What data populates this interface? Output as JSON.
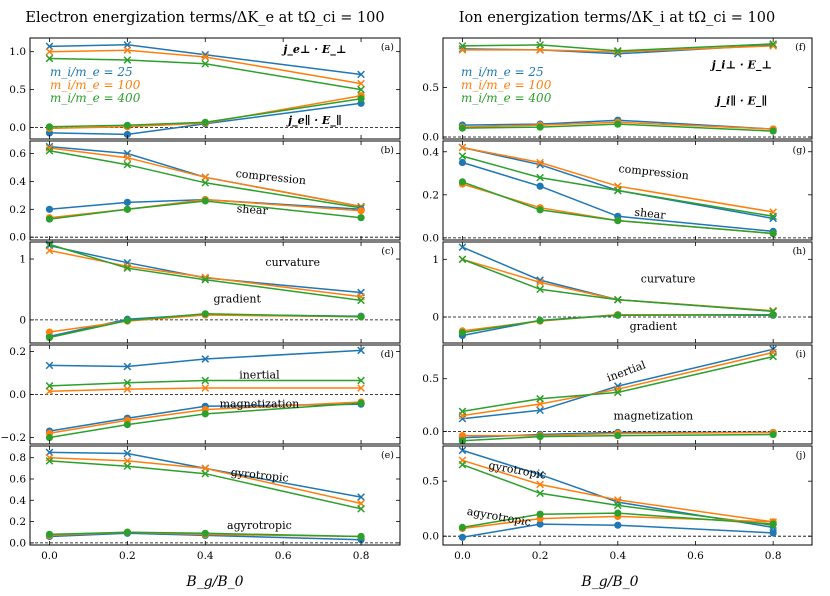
{
  "colors": {
    "mi25": "#1f77b4",
    "mi100": "#ff7f0e",
    "mi400": "#2ca02c"
  },
  "chart_data": {
    "type": "line",
    "x": [
      0.0,
      0.2,
      0.4,
      0.8
    ],
    "xlabel": "B_g/B_0",
    "xlim": [
      -0.05,
      0.9
    ],
    "xticks": [
      "0.0",
      "0.2",
      "0.4",
      "0.6",
      "0.8"
    ],
    "legend": [
      {
        "name": "m_i/m_e = 25",
        "color_key": "mi25"
      },
      {
        "name": "m_i/m_e = 100",
        "color_key": "mi100"
      },
      {
        "name": "m_i/m_e = 400",
        "color_key": "mi400"
      }
    ],
    "columns": [
      {
        "title": "Electron energization terms/ΔK_e at tΩ_ci = 100"
      },
      {
        "title": "Ion energization terms/ΔK_i at tΩ_ci = 100"
      }
    ],
    "panels": [
      {
        "label": "(a)",
        "col": 0,
        "row": 0,
        "ylim": [
          -0.15,
          1.18
        ],
        "yticks": [
          "0.0",
          "0.5",
          "1.0"
        ],
        "ytick_values": [
          0.0,
          0.5,
          1.0
        ],
        "annotations": [
          "j_e⊥ · E_⊥",
          "j_e∥ · E_∥"
        ],
        "series": [
          {
            "name": "j_e⊥ · E_⊥",
            "marker": "x",
            "values": {
              "mi25": [
                1.07,
                1.09,
                0.96,
                0.7
              ],
              "mi100": [
                1.0,
                1.02,
                0.93,
                0.58
              ],
              "mi400": [
                0.91,
                0.89,
                0.84,
                0.5
              ]
            }
          },
          {
            "name": "j_e∥ · E_∥",
            "marker": "o",
            "values": {
              "mi25": [
                -0.07,
                -0.09,
                0.05,
                0.32
              ],
              "mi100": [
                -0.01,
                0.01,
                0.06,
                0.42
              ],
              "mi400": [
                0.01,
                0.03,
                0.07,
                0.38
              ]
            }
          }
        ]
      },
      {
        "label": "(b)",
        "col": 0,
        "row": 1,
        "ylim": [
          -0.02,
          0.69
        ],
        "yticks": [
          "0.0",
          "0.2",
          "0.4",
          "0.6"
        ],
        "ytick_values": [
          0.0,
          0.2,
          0.4,
          0.6
        ],
        "annotations": [
          "compression",
          "shear"
        ],
        "series": [
          {
            "name": "compression",
            "marker": "x",
            "values": {
              "mi25": [
                0.65,
                0.6,
                0.43,
                0.22
              ],
              "mi100": [
                0.64,
                0.57,
                0.43,
                0.22
              ],
              "mi400": [
                0.62,
                0.52,
                0.39,
                0.21
              ]
            }
          },
          {
            "name": "shear",
            "marker": "o",
            "values": {
              "mi25": [
                0.2,
                0.25,
                0.27,
                0.2
              ],
              "mi100": [
                0.14,
                0.2,
                0.27,
                0.19
              ],
              "mi400": [
                0.13,
                0.2,
                0.26,
                0.14
              ]
            }
          }
        ]
      },
      {
        "label": "(c)",
        "col": 0,
        "row": 2,
        "ylim": [
          -0.38,
          1.28
        ],
        "yticks": [
          "0",
          "1"
        ],
        "ytick_values": [
          0,
          1
        ],
        "annotations": [
          "curvature",
          "gradient"
        ],
        "series": [
          {
            "name": "curvature",
            "marker": "x",
            "values": {
              "mi25": [
                1.22,
                0.94,
                0.69,
                0.45
              ],
              "mi100": [
                1.14,
                0.88,
                0.7,
                0.38
              ],
              "mi400": [
                1.24,
                0.85,
                0.66,
                0.32
              ]
            }
          },
          {
            "name": "gradient",
            "marker": "o",
            "values": {
              "mi25": [
                -0.27,
                0.01,
                0.09,
                0.06
              ],
              "mi100": [
                -0.2,
                -0.02,
                0.08,
                0.05
              ],
              "mi400": [
                -0.29,
                -0.01,
                0.1,
                0.05
              ]
            }
          }
        ]
      },
      {
        "label": "(d)",
        "col": 0,
        "row": 3,
        "ylim": [
          -0.23,
          0.23
        ],
        "yticks": [
          "−0.2",
          "0.0",
          "0.2"
        ],
        "ytick_values": [
          -0.2,
          0.0,
          0.2
        ],
        "annotations": [
          "inertial",
          "magnetization"
        ],
        "series": [
          {
            "name": "inertial",
            "marker": "x",
            "values": {
              "mi25": [
                0.135,
                0.13,
                0.165,
                0.205
              ],
              "mi100": [
                0.015,
                0.025,
                0.03,
                0.03
              ],
              "mi400": [
                0.04,
                0.055,
                0.065,
                0.065
              ]
            }
          },
          {
            "name": "magnetization",
            "marker": "o",
            "values": {
              "mi25": [
                -0.17,
                -0.11,
                -0.055,
                -0.045
              ],
              "mi100": [
                -0.18,
                -0.12,
                -0.07,
                -0.035
              ],
              "mi400": [
                -0.2,
                -0.14,
                -0.09,
                -0.04
              ]
            }
          }
        ]
      },
      {
        "label": "(e)",
        "col": 0,
        "row": 4,
        "ylim": [
          -0.02,
          0.91
        ],
        "yticks": [
          "0.0",
          "0.2",
          "0.4",
          "0.6",
          "0.8"
        ],
        "ytick_values": [
          0.0,
          0.2,
          0.4,
          0.6,
          0.8
        ],
        "annotations": [
          "gyrotropic",
          "agyrotropic"
        ],
        "series": [
          {
            "name": "gyrotropic",
            "marker": "x",
            "values": {
              "mi25": [
                0.85,
                0.84,
                0.7,
                0.43
              ],
              "mi100": [
                0.8,
                0.77,
                0.7,
                0.37
              ],
              "mi400": [
                0.77,
                0.72,
                0.65,
                0.32
              ]
            }
          },
          {
            "name": "agyrotropic",
            "marker": "o",
            "values": {
              "mi25": [
                0.06,
                0.09,
                0.07,
                0.03
              ],
              "mi100": [
                0.07,
                0.1,
                0.08,
                0.06
              ],
              "mi400": [
                0.08,
                0.1,
                0.09,
                0.06
              ]
            }
          }
        ]
      },
      {
        "label": "(f)",
        "col": 1,
        "row": 0,
        "ylim": [
          -0.02,
          1.0
        ],
        "yticks": [
          "0.0",
          "0.5"
        ],
        "ytick_values": [
          0.0,
          0.5
        ],
        "annotations": [
          "j_i⊥ · E_⊥",
          "j_i∥ · E_∥"
        ],
        "series": [
          {
            "name": "j_i⊥ · E_⊥",
            "marker": "x",
            "values": {
              "mi25": [
                0.89,
                0.88,
                0.84,
                0.93
              ],
              "mi100": [
                0.88,
                0.88,
                0.86,
                0.92
              ],
              "mi400": [
                0.92,
                0.93,
                0.87,
                0.94
              ]
            }
          },
          {
            "name": "j_i∥ · E_∥",
            "marker": "o",
            "values": {
              "mi25": [
                0.12,
                0.13,
                0.17,
                0.08
              ],
              "mi100": [
                0.1,
                0.12,
                0.15,
                0.08
              ],
              "mi400": [
                0.09,
                0.1,
                0.13,
                0.06
              ]
            }
          }
        ]
      },
      {
        "label": "(g)",
        "col": 1,
        "row": 1,
        "ylim": [
          -0.01,
          0.45
        ],
        "yticks": [
          "0.0",
          "0.2",
          "0.4"
        ],
        "ytick_values": [
          0.0,
          0.2,
          0.4
        ],
        "annotations": [
          "compression",
          "shear"
        ],
        "series": [
          {
            "name": "compression",
            "marker": "x",
            "values": {
              "mi25": [
                0.42,
                0.34,
                0.22,
                0.09
              ],
              "mi100": [
                0.42,
                0.35,
                0.24,
                0.12
              ],
              "mi400": [
                0.38,
                0.28,
                0.22,
                0.1
              ]
            }
          },
          {
            "name": "shear",
            "marker": "o",
            "values": {
              "mi25": [
                0.35,
                0.24,
                0.1,
                0.03
              ],
              "mi100": [
                0.25,
                0.14,
                0.08,
                0.02
              ],
              "mi400": [
                0.26,
                0.13,
                0.08,
                0.02
              ]
            }
          }
        ]
      },
      {
        "label": "(h)",
        "col": 1,
        "row": 2,
        "ylim": [
          -0.45,
          1.3
        ],
        "yticks": [
          "0",
          "1"
        ],
        "ytick_values": [
          0,
          1
        ],
        "annotations": [
          "curvature",
          "gradient"
        ],
        "series": [
          {
            "name": "curvature",
            "marker": "x",
            "values": {
              "mi25": [
                1.21,
                0.64,
                0.3,
                0.1
              ],
              "mi100": [
                1.0,
                0.6,
                0.3,
                0.11
              ],
              "mi400": [
                1.0,
                0.48,
                0.3,
                0.1
              ]
            }
          },
          {
            "name": "gradient",
            "marker": "o",
            "values": {
              "mi25": [
                -0.32,
                -0.06,
                0.04,
                0.03
              ],
              "mi100": [
                -0.24,
                -0.07,
                0.04,
                0.04
              ],
              "mi400": [
                -0.27,
                -0.06,
                0.03,
                0.04
              ]
            }
          }
        ]
      },
      {
        "label": "(i)",
        "col": 1,
        "row": 3,
        "ylim": [
          -0.12,
          0.82
        ],
        "yticks": [
          "0.0",
          "0.5"
        ],
        "ytick_values": [
          0.0,
          0.5
        ],
        "annotations": [
          "inertial",
          "magnetization"
        ],
        "series": [
          {
            "name": "inertial",
            "marker": "x",
            "values": {
              "mi25": [
                0.12,
                0.2,
                0.43,
                0.78
              ],
              "mi100": [
                0.15,
                0.26,
                0.4,
                0.75
              ],
              "mi400": [
                0.19,
                0.31,
                0.37,
                0.71
              ]
            }
          },
          {
            "name": "magnetization",
            "marker": "o",
            "values": {
              "mi25": [
                -0.06,
                -0.03,
                -0.01,
                -0.01
              ],
              "mi100": [
                -0.04,
                -0.04,
                -0.02,
                -0.01
              ],
              "mi400": [
                -0.09,
                -0.05,
                -0.04,
                -0.03
              ]
            }
          }
        ]
      },
      {
        "label": "(j)",
        "col": 1,
        "row": 4,
        "ylim": [
          -0.08,
          0.82
        ],
        "yticks": [
          "0.0",
          "0.5"
        ],
        "ytick_values": [
          0.0,
          0.5
        ],
        "annotations": [
          "gyrotropic",
          "agyrotropic"
        ],
        "series": [
          {
            "name": "gyrotropic",
            "marker": "x",
            "values": {
              "mi25": [
                0.78,
                0.56,
                0.31,
                0.08
              ],
              "mi100": [
                0.69,
                0.47,
                0.33,
                0.13
              ],
              "mi400": [
                0.65,
                0.39,
                0.28,
                0.1
              ]
            }
          },
          {
            "name": "agyrotropic",
            "marker": "o",
            "values": {
              "mi25": [
                -0.01,
                0.11,
                0.1,
                0.03
              ],
              "mi100": [
                0.07,
                0.16,
                0.18,
                0.13
              ],
              "mi400": [
                0.08,
                0.2,
                0.21,
                0.11
              ]
            }
          }
        ]
      }
    ]
  }
}
